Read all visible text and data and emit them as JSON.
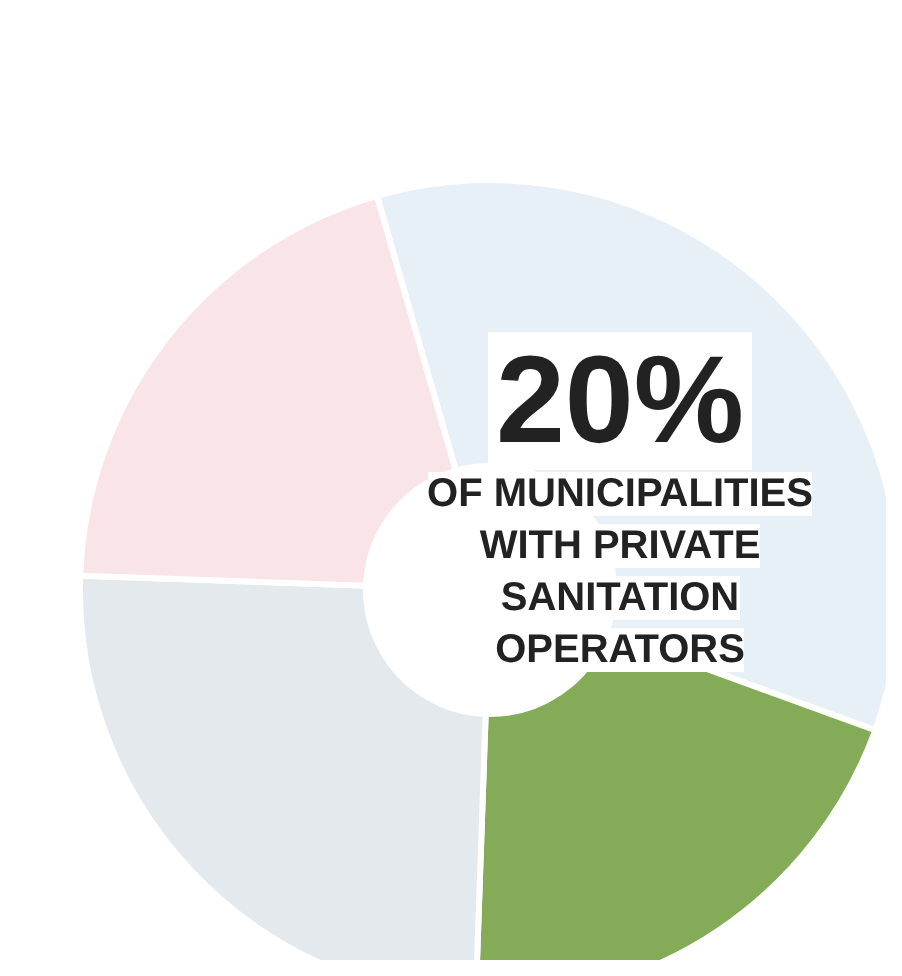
{
  "chart_data": {
    "type": "donut",
    "title": "20%",
    "subtitle": "OF MUNICIPALITIES WITH PRIVATE SANITATION OPERATORS",
    "categories": [
      null,
      null,
      null,
      null
    ],
    "values": [
      35,
      20,
      25,
      20
    ],
    "colors": [
      "#e7f0f7",
      "#84ac58",
      "#e4e9ee",
      "#f9e5e7"
    ]
  }
}
